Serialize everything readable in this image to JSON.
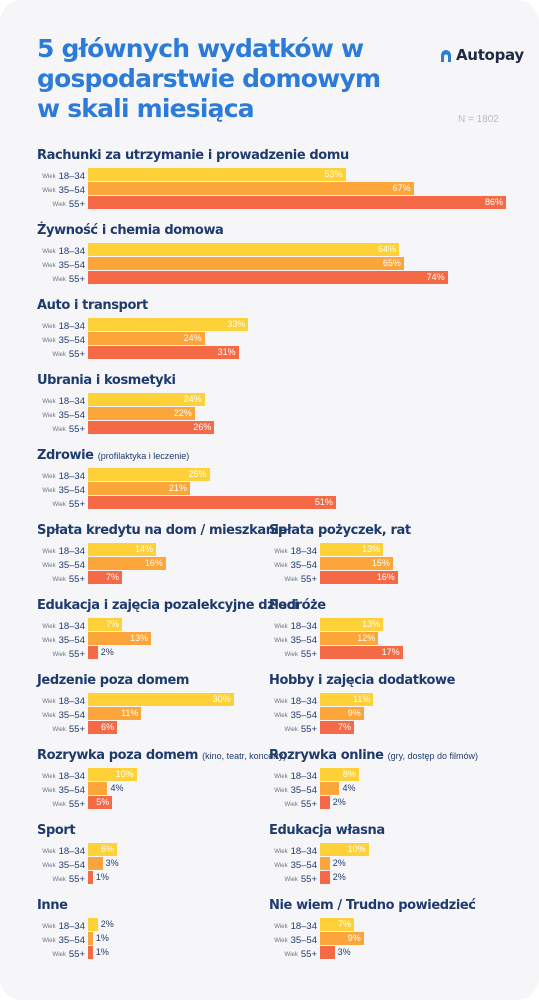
{
  "header": {
    "title": "5 głównych wydatków w gospodarstwie domowym w skali miesiąca",
    "brand": "Autopay",
    "sample_note": "N = 1802"
  },
  "colors": {
    "age_18_34": "#fdd137",
    "age_35_54": "#fba53a",
    "age_55_plus": "#f56a46",
    "title": "#2c7bd8",
    "text": "#1f3b6e"
  },
  "chart_data": {
    "type": "bar",
    "orientation": "horizontal",
    "unit": "%",
    "age_prefix": "Wiek",
    "age_groups": [
      "18–34",
      "35–54",
      "55+"
    ],
    "categories": [
      {
        "name": "Rachunki za utrzymanie i prowadzenie domu",
        "note": "",
        "values": [
          53,
          67,
          86
        ]
      },
      {
        "name": "Żywność i chemia domowa",
        "note": "",
        "values": [
          64,
          65,
          74
        ]
      },
      {
        "name": "Auto i transport",
        "note": "",
        "values": [
          33,
          24,
          31
        ]
      },
      {
        "name": "Ubrania i kosmetyki",
        "note": "",
        "values": [
          24,
          22,
          26
        ]
      },
      {
        "name": "Zdrowie",
        "note": "(profilaktyka i leczenie)",
        "values": [
          25,
          21,
          51
        ]
      },
      {
        "name": "Spłata kredytu na dom / mieszkanie",
        "note": "",
        "values": [
          14,
          16,
          7
        ]
      },
      {
        "name": "Spłata pożyczek, rat",
        "note": "",
        "values": [
          13,
          15,
          16
        ]
      },
      {
        "name": "Edukacja i zajęcia pozalekcyjne dzieci",
        "note": "",
        "values": [
          7,
          13,
          2
        ]
      },
      {
        "name": "Podróże",
        "note": "",
        "values": [
          13,
          12,
          17
        ]
      },
      {
        "name": "Jedzenie poza domem",
        "note": "",
        "values": [
          30,
          11,
          6
        ]
      },
      {
        "name": "Hobby i zajęcia dodatkowe",
        "note": "",
        "values": [
          11,
          9,
          7
        ]
      },
      {
        "name": "Rozrywka poza domem",
        "note": "(kino, teatr, koncerty)",
        "values": [
          10,
          4,
          5
        ]
      },
      {
        "name": "Rozrywka online",
        "note": "(gry, dostęp do filmów)",
        "values": [
          8,
          4,
          2
        ]
      },
      {
        "name": "Sport",
        "note": "",
        "values": [
          6,
          3,
          1
        ]
      },
      {
        "name": "Edukacja własna",
        "note": "",
        "values": [
          10,
          2,
          2
        ]
      },
      {
        "name": "Inne",
        "note": "",
        "values": [
          2,
          1,
          1
        ]
      },
      {
        "name": "Nie wiem / Trudno powiedzieć",
        "note": "",
        "values": [
          7,
          9,
          3
        ]
      }
    ]
  }
}
